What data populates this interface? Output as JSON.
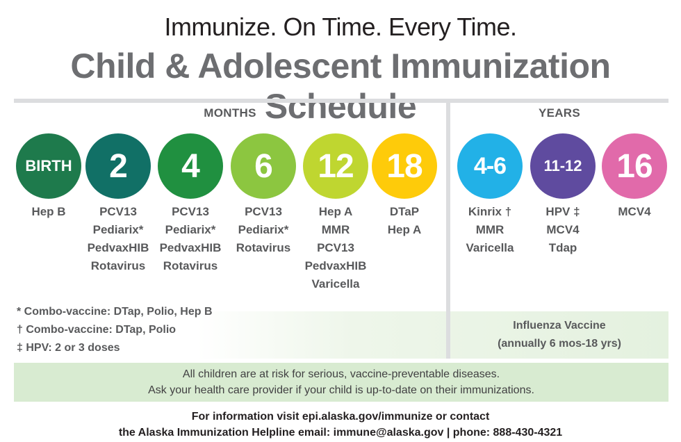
{
  "header": {
    "tagline": "Immunize. On Time. Every Time.",
    "title": "Child & Adolescent Immunization Schedule"
  },
  "sections": {
    "months_label": "MONTHS",
    "years_label": "YEARS"
  },
  "schedule": [
    {
      "age": "BIRTH",
      "color": "#1e7a4c",
      "vaccines": [
        "Hep B"
      ]
    },
    {
      "age": "2",
      "color": "#117066",
      "vaccines": [
        "PCV13",
        "Pediarix*",
        "PedvaxHIB",
        "Rotavirus"
      ]
    },
    {
      "age": "4",
      "color": "#209040",
      "vaccines": [
        "PCV13",
        "Pediarix*",
        "PedvaxHIB",
        "Rotavirus"
      ]
    },
    {
      "age": "6",
      "color": "#8cc640",
      "vaccines": [
        "PCV13",
        "Pediarix*",
        "Rotavirus"
      ]
    },
    {
      "age": "12",
      "color": "#bfd630",
      "vaccines": [
        "Hep A",
        "MMR",
        "PCV13",
        "PedvaxHIB",
        "Varicella"
      ]
    },
    {
      "age": "18",
      "color": "#fecb0a",
      "vaccines": [
        "DTaP",
        "Hep A"
      ]
    },
    {
      "age": "4-6",
      "color": "#22b1e7",
      "vaccines": [
        "Kinrix †",
        "MMR",
        "Varicella"
      ]
    },
    {
      "age": "11-12",
      "color": "#5f4b9f",
      "vaccines": [
        "HPV ‡",
        "MCV4",
        "Tdap"
      ]
    },
    {
      "age": "16",
      "color": "#e16aaa",
      "vaccines": [
        "MCV4"
      ]
    }
  ],
  "footnotes": [
    "* Combo-vaccine: DTap, Polio, Hep B",
    "† Combo-vaccine: DTap, Polio",
    "‡ HPV: 2 or 3 doses"
  ],
  "flu": {
    "title": "Influenza Vaccine",
    "detail": "(annually 6 mos-18 yrs)"
  },
  "notice": {
    "line1": "All children are at risk for serious, vaccine-preventable diseases.",
    "line2": "Ask your health care provider if your child is up-to-date on their immunizations."
  },
  "contact": {
    "line1": "For information visit epi.alaska.gov/immunize or contact",
    "line2": "the Alaska Immunization Helpline email: immune@alaska.gov | phone: 888-430-4321"
  }
}
